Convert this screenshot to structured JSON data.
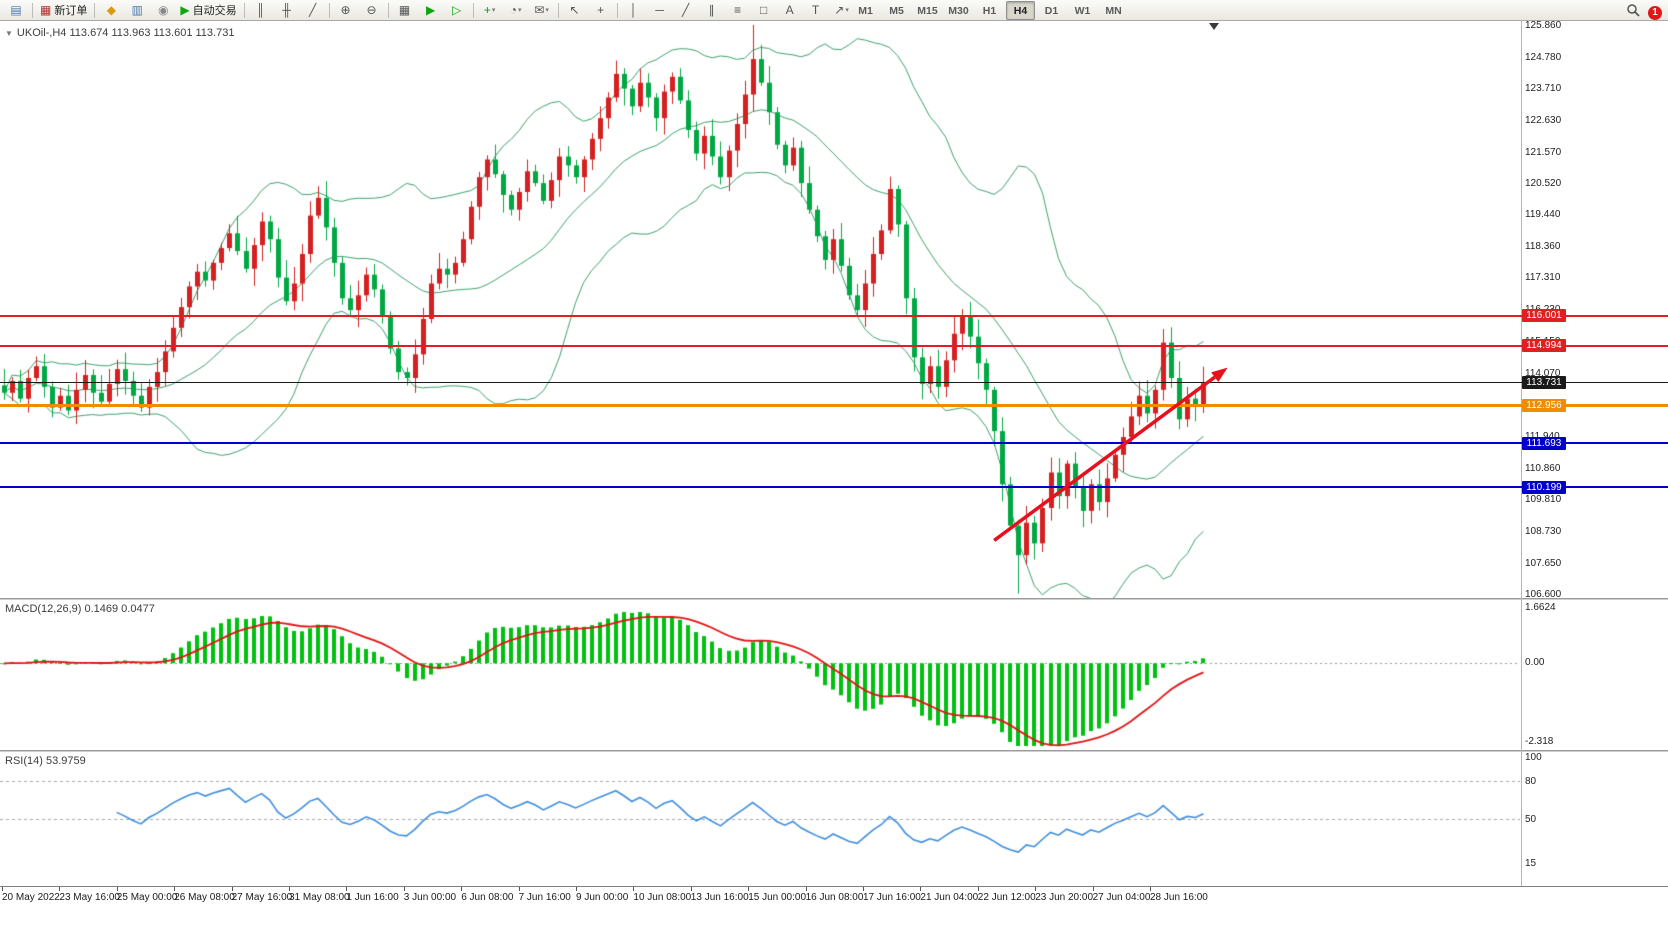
{
  "toolbar": {
    "new_order_label": "新订单",
    "autotrade_label": "自动交易",
    "notification_count": "1",
    "timeframes": [
      "M1",
      "M5",
      "M15",
      "M30",
      "H1",
      "H4",
      "D1",
      "W1",
      "MN"
    ],
    "active_timeframe": "H4",
    "buttons": [
      {
        "name": "chart-window-icon",
        "glyph": "▤",
        "color": "#4a78b0"
      },
      {
        "sep": true
      },
      {
        "name": "new-order-button",
        "glyph": "▦",
        "color": "#b03030",
        "label": "新订单"
      },
      {
        "sep": true
      },
      {
        "name": "market-watch-icon",
        "glyph": "◆",
        "color": "#d89b10"
      },
      {
        "name": "data-window-icon",
        "glyph": "▥",
        "color": "#4a78b0"
      },
      {
        "name": "navigator-icon",
        "glyph": "◉",
        "color": "#888888"
      },
      {
        "name": "autotrade-button",
        "glyph": "▶",
        "color": "#12a512",
        "label": "自动交易"
      },
      {
        "sep": true
      },
      {
        "name": "bar-chart-icon",
        "glyph": "║"
      },
      {
        "name": "candle-chart-icon",
        "glyph": "╫"
      },
      {
        "name": "line-chart-icon",
        "glyph": "╱"
      },
      {
        "sep": true
      },
      {
        "name": "zoom-in-icon",
        "glyph": "⊕"
      },
      {
        "name": "zoom-out-icon",
        "glyph": "⊖"
      },
      {
        "sep": true
      },
      {
        "name": "tile-windows-icon",
        "glyph": "▦"
      },
      {
        "name": "auto-scroll-icon",
        "glyph": "▶",
        "color": "#12a512"
      },
      {
        "name": "chart-shift-icon",
        "glyph": "▷",
        "color": "#12a512"
      },
      {
        "sep": true
      },
      {
        "name": "indicators-icon",
        "glyph": "+",
        "color": "#0a9a0a",
        "dropdown": true
      },
      {
        "name": "periods-icon",
        "glyph": "◔",
        "dropdown": true
      },
      {
        "name": "mail-icon",
        "glyph": "✉",
        "dropdown": true
      },
      {
        "sep": true
      },
      {
        "name": "cursor-icon",
        "glyph": "↖"
      },
      {
        "name": "crosshair-icon",
        "glyph": "+"
      },
      {
        "sep": true
      },
      {
        "name": "vertical-line-icon",
        "glyph": "│"
      },
      {
        "name": "horizontal-line-icon",
        "glyph": "─"
      },
      {
        "name": "trendline-icon",
        "glyph": "╱"
      },
      {
        "name": "channel-icon",
        "glyph": "∥"
      },
      {
        "name": "fibonacci-icon",
        "glyph": "≡"
      },
      {
        "name": "shapes-icon",
        "glyph": "□"
      },
      {
        "name": "text-icon",
        "glyph": "A"
      },
      {
        "name": "label-icon",
        "glyph": "T"
      },
      {
        "name": "arrows-icon",
        "glyph": "↗",
        "dropdown": true
      }
    ]
  },
  "chart": {
    "symbol_line": "UKOil-,H4 113.674 113.963 113.601 113.731",
    "y_ticks": [
      "125.860",
      "124.780",
      "123.710",
      "122.630",
      "121.570",
      "120.520",
      "119.440",
      "118.360",
      "117.310",
      "116.230",
      "115.150",
      "114.070",
      "112.990",
      "111.940",
      "110.860",
      "109.810",
      "108.730",
      "107.650",
      "106.600"
    ],
    "h_lines": [
      {
        "value": 116.001,
        "label": "116.001",
        "color": "#e02020",
        "width": 2
      },
      {
        "value": 114.994,
        "label": "114.994",
        "color": "#e02020",
        "width": 2
      },
      {
        "value": 113.731,
        "label": "113.731",
        "color": "#1a1a1a",
        "width": 1
      },
      {
        "value": 112.956,
        "label": "112.956",
        "color": "#f08c00",
        "width": 3
      },
      {
        "value": 111.693,
        "label": "111.693",
        "color": "#0000c8",
        "width": 2
      },
      {
        "value": 110.199,
        "label": "110.199",
        "color": "#0000c8",
        "width": 2
      }
    ],
    "trend_arrow": {
      "from": {
        "index": 123,
        "price": 108.4
      },
      "to": {
        "index": 152,
        "price": 114.25
      },
      "color": "#e8101c"
    }
  },
  "macd": {
    "label": "MACD(12,26,9) 0.1469 0.0477",
    "params": [
      12,
      26,
      9
    ],
    "value": 0.1469,
    "signal_value": 0.0477,
    "ticks": [
      "1.6624",
      "0.00",
      "-2.318"
    ],
    "histogram_color": "#00c010",
    "signal_color": "#e01414"
  },
  "rsi": {
    "label": "RSI(14) 53.9759",
    "period": 14,
    "value": 53.9759,
    "ticks": [
      "100",
      "80",
      "50",
      "15"
    ],
    "levels": [
      80,
      50
    ],
    "line_color": "#3f8edc"
  },
  "chart_data": {
    "type": "candlestick",
    "title": "UKOil-,H4",
    "timeframe": "H4",
    "ohlc_readout": {
      "open": 113.674,
      "high": 113.963,
      "low": 113.601,
      "close": 113.731
    },
    "price_min": 106.45,
    "price_max": 125.99,
    "visible_high": 125.86,
    "visible_low": 106.6,
    "up_color": "#d42020",
    "down_color": "#00a843",
    "bollinger": {
      "period": 20,
      "deviation": 2,
      "color": "#3da06b"
    },
    "closes": [
      113.4,
      113.8,
      113.2,
      113.9,
      114.3,
      113.6,
      112.9,
      113.3,
      112.8,
      113.5,
      114.0,
      113.4,
      113.1,
      113.7,
      114.2,
      113.8,
      113.3,
      112.9,
      113.6,
      114.1,
      114.8,
      115.6,
      116.3,
      117.0,
      117.5,
      117.2,
      117.8,
      118.3,
      118.8,
      118.2,
      117.6,
      118.4,
      119.2,
      118.6,
      117.3,
      116.5,
      117.1,
      118.1,
      119.4,
      120.0,
      119.0,
      117.8,
      116.6,
      116.2,
      116.7,
      117.4,
      116.9,
      116.0,
      114.9,
      114.1,
      113.9,
      114.7,
      115.9,
      117.1,
      117.6,
      117.4,
      117.8,
      118.6,
      119.7,
      120.7,
      121.3,
      120.8,
      120.1,
      119.6,
      120.2,
      120.9,
      120.5,
      119.9,
      120.6,
      121.4,
      121.1,
      120.7,
      121.3,
      122.0,
      122.7,
      123.4,
      124.2,
      123.7,
      123.1,
      123.9,
      123.4,
      122.7,
      123.6,
      124.1,
      123.3,
      122.3,
      121.5,
      122.1,
      121.4,
      120.7,
      121.6,
      122.5,
      123.5,
      124.7,
      123.9,
      122.9,
      121.8,
      121.1,
      121.7,
      120.5,
      119.6,
      118.7,
      117.9,
      118.6,
      117.7,
      116.7,
      116.2,
      117.1,
      118.1,
      118.9,
      120.3,
      119.1,
      116.6,
      114.6,
      113.7,
      114.3,
      113.6,
      114.5,
      115.4,
      116.0,
      115.3,
      114.4,
      113.5,
      112.1,
      110.3,
      108.9,
      107.9,
      109.0,
      108.3,
      109.5,
      110.7,
      109.9,
      111.0,
      110.2,
      109.4,
      110.3,
      109.7,
      110.5,
      111.3,
      111.9,
      112.6,
      113.3,
      112.7,
      113.5,
      115.1,
      113.9,
      112.5,
      113.2,
      113.0,
      113.73
    ],
    "extreme_high": {
      "index": 93,
      "value": 125.86
    },
    "extreme_low": {
      "index": 126,
      "value": 106.6
    },
    "time_labels": [
      "20 May 2022",
      "23 May 16:00",
      "25 May 00:00",
      "26 May 08:00",
      "27 May 16:00",
      "31 May 08:00",
      "1 Jun 16:00",
      "3 Jun 00:00",
      "6 Jun 08:00",
      "7 Jun 16:00",
      "9 Jun 00:00",
      "10 Jun 08:00",
      "13 Jun 16:00",
      "15 Jun 00:00",
      "16 Jun 08:00",
      "17 Jun 16:00",
      "21 Jun 04:00",
      "22 Jun 12:00",
      "23 Jun 20:00",
      "27 Jun 04:00",
      "28 Jun 16:00"
    ]
  }
}
